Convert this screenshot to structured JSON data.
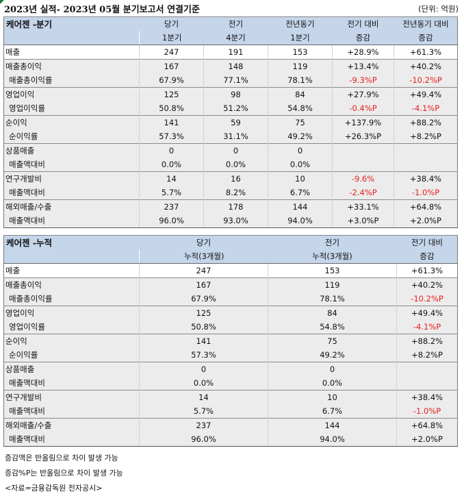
{
  "title": "2023년 실적- 2023년 05월 분기보고서 연결기준",
  "unit": "(단위: 억원)",
  "quarter": {
    "section_label": "케어젠 -분기",
    "headers": [
      [
        "당기",
        "1분기"
      ],
      [
        "전기",
        "4분기"
      ],
      [
        "전년동기",
        "1분기"
      ],
      [
        "전기 대비",
        "증감"
      ],
      [
        "전년동기 대비",
        "증감"
      ]
    ],
    "rows": [
      {
        "label": "매출",
        "values": [
          "247",
          "191",
          "153",
          "+28.9%",
          "+61.3%"
        ]
      },
      {
        "label": "매출총이익",
        "values": [
          "167",
          "148",
          "119",
          "+13.4%",
          "+40.2%"
        ]
      },
      {
        "label": "매출총이익률",
        "values": [
          "67.9%",
          "77.1%",
          "78.1%",
          "-9.3%P",
          "-10.2%P"
        ]
      },
      {
        "label": "영업이익",
        "values": [
          "125",
          "98",
          "84",
          "+27.9%",
          "+49.4%"
        ]
      },
      {
        "label": "영업이익률",
        "values": [
          "50.8%",
          "51.2%",
          "54.8%",
          "-0.4%P",
          "-4.1%P"
        ]
      },
      {
        "label": "순이익",
        "values": [
          "141",
          "59",
          "75",
          "+137.9%",
          "+88.2%"
        ]
      },
      {
        "label": "순이익률",
        "values": [
          "57.3%",
          "31.1%",
          "49.2%",
          "+26.3%P",
          "+8.2%P"
        ]
      },
      {
        "label": "상품매출",
        "values": [
          "0",
          "0",
          "0",
          "",
          ""
        ]
      },
      {
        "label": "매출액대비",
        "values": [
          "0.0%",
          "0.0%",
          "0.0%",
          "",
          ""
        ]
      },
      {
        "label": "연구개발비",
        "values": [
          "14",
          "16",
          "10",
          "-9.6%",
          "+38.4%"
        ]
      },
      {
        "label": "매출액대비",
        "values": [
          "5.7%",
          "8.2%",
          "6.7%",
          "-2.4%P",
          "-1.0%P"
        ]
      },
      {
        "label": "해외매출/수출",
        "values": [
          "237",
          "178",
          "144",
          "+33.1%",
          "+64.8%"
        ]
      },
      {
        "label": "매출액대비",
        "values": [
          "96.0%",
          "93.0%",
          "94.0%",
          "+3.0%P",
          "+2.0%P"
        ]
      }
    ]
  },
  "cumulative": {
    "section_label": "케어젠 -누적",
    "headers": [
      [
        "당기",
        "누적(3개월)"
      ],
      [
        "전기",
        "누적(3개월)"
      ],
      [
        "전기 대비",
        "증감"
      ]
    ],
    "rows": [
      {
        "label": "매출",
        "values": [
          "247",
          "153",
          "+61.3%"
        ]
      },
      {
        "label": "매출총이익",
        "values": [
          "167",
          "119",
          "+40.2%"
        ]
      },
      {
        "label": "매출총이익률",
        "values": [
          "67.9%",
          "78.1%",
          "-10.2%P"
        ]
      },
      {
        "label": "영업이익",
        "values": [
          "125",
          "84",
          "+49.4%"
        ]
      },
      {
        "label": "영업이익률",
        "values": [
          "50.8%",
          "54.8%",
          "-4.1%P"
        ]
      },
      {
        "label": "순이익",
        "values": [
          "141",
          "75",
          "+88.2%"
        ]
      },
      {
        "label": "순이익률",
        "values": [
          "57.3%",
          "49.2%",
          "+8.2%P"
        ]
      },
      {
        "label": "상품매출",
        "values": [
          "0",
          "0",
          ""
        ]
      },
      {
        "label": "매출액대비",
        "values": [
          "0.0%",
          "0.0%",
          ""
        ]
      },
      {
        "label": "연구개발비",
        "values": [
          "14",
          "10",
          "+38.4%"
        ]
      },
      {
        "label": "매출액대비",
        "values": [
          "5.7%",
          "6.7%",
          "-1.0%P"
        ]
      },
      {
        "label": "해외매출/수출",
        "values": [
          "237",
          "144",
          "+64.8%"
        ]
      },
      {
        "label": "매출액대비",
        "values": [
          "96.0%",
          "94.0%",
          "+2.0%P"
        ]
      }
    ]
  },
  "notes": [
    "증감액은 반올림으로 차이 발생 가능",
    "증감%P는 반올림으로 차이 발생 가능",
    "<자료=금융감독원 전자공시>"
  ],
  "colors": {
    "header_bg": "#c5d5ea",
    "shade_bg": "#ececec",
    "negative": "#e6201f",
    "marker": "#1e7a3a"
  }
}
